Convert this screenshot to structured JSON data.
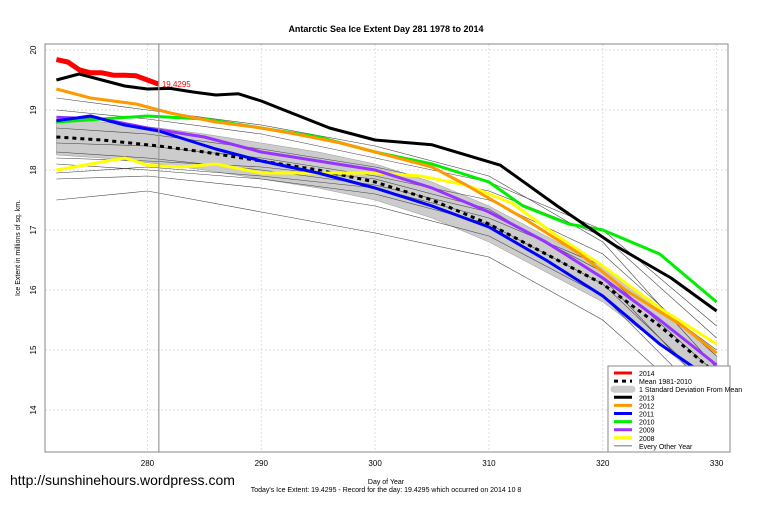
{
  "chart_data": {
    "type": "line",
    "title": "Antarctic Sea Ice Extent Day 281 1978 to 2014",
    "xlabel": "Day of Year",
    "ylabel": "Ice Extent in millions of sq. km.",
    "subtitle": "Today's Ice Extent: 19.4295  - Record for the day: 19.4295 which occurred on 2014 10 8",
    "xlim": [
      271,
      331
    ],
    "ylim": [
      13.3,
      20.1
    ],
    "xticks": [
      280,
      290,
      300,
      310,
      320,
      330
    ],
    "yticks": [
      14,
      15,
      16,
      17,
      18,
      19,
      20
    ],
    "grid": true,
    "legend_position": "bottom-right",
    "marker_day": 281,
    "current_label": "19.4295",
    "sd_band_halfwidth": 0.3,
    "mean": {
      "name": "Mean 1981-2010",
      "x": [
        272,
        276,
        281,
        285,
        290,
        295,
        300,
        305,
        310,
        315,
        320,
        325,
        330
      ],
      "y": [
        18.55,
        18.5,
        18.4,
        18.3,
        18.15,
        18.0,
        17.8,
        17.5,
        17.1,
        16.6,
        16.1,
        15.4,
        14.6
      ]
    },
    "sd_name": "1 Standard Deviation From Mean",
    "series": [
      {
        "name": "2014",
        "color": "#ff0000",
        "width": 5,
        "x": [
          272,
          273,
          274,
          275,
          276,
          277,
          278,
          279,
          280,
          281
        ],
        "y": [
          19.84,
          19.8,
          19.67,
          19.62,
          19.62,
          19.58,
          19.58,
          19.57,
          19.5,
          19.43
        ]
      },
      {
        "name": "2013",
        "color": "#000000",
        "width": 3,
        "x": [
          272,
          274,
          276,
          278,
          280,
          282,
          284,
          286,
          288,
          290,
          292,
          294,
          296,
          298,
          300,
          305,
          311,
          316,
          321,
          326,
          330
        ],
        "y": [
          19.5,
          19.6,
          19.5,
          19.4,
          19.35,
          19.36,
          19.3,
          19.25,
          19.27,
          19.15,
          19.0,
          18.85,
          18.7,
          18.6,
          18.5,
          18.42,
          18.08,
          17.4,
          16.75,
          16.2,
          15.65
        ]
      },
      {
        "name": "2012",
        "color": "#ff9900",
        "width": 3,
        "x": [
          272,
          275,
          279,
          282,
          286,
          290,
          293,
          297,
          300,
          305,
          308,
          313,
          318,
          322,
          327,
          330
        ],
        "y": [
          19.35,
          19.2,
          19.1,
          18.95,
          18.8,
          18.7,
          18.6,
          18.45,
          18.3,
          18.05,
          17.75,
          17.2,
          16.6,
          16.0,
          15.4,
          14.95
        ]
      },
      {
        "name": "2011",
        "color": "#0000ff",
        "width": 3,
        "x": [
          272,
          275,
          278,
          281,
          286,
          290,
          295,
          300,
          305,
          310,
          315,
          320,
          325,
          330
        ],
        "y": [
          18.82,
          18.9,
          18.75,
          18.65,
          18.35,
          18.15,
          17.95,
          17.7,
          17.4,
          17.05,
          16.5,
          15.9,
          15.1,
          14.45
        ]
      },
      {
        "name": "2010",
        "color": "#00ee00",
        "width": 3,
        "x": [
          272,
          276,
          280,
          285,
          290,
          295,
          300,
          305,
          310,
          313,
          317,
          320,
          325,
          330
        ],
        "y": [
          18.8,
          18.85,
          18.9,
          18.85,
          18.7,
          18.55,
          18.3,
          18.1,
          17.8,
          17.4,
          17.1,
          17.0,
          16.6,
          15.8
        ]
      },
      {
        "name": "2009",
        "color": "#9933ff",
        "width": 3,
        "x": [
          272,
          276,
          280,
          285,
          290,
          295,
          300,
          305,
          310,
          315,
          320,
          325,
          330
        ],
        "y": [
          18.88,
          18.85,
          18.7,
          18.55,
          18.3,
          18.15,
          18.0,
          17.7,
          17.3,
          16.8,
          16.2,
          15.5,
          14.75
        ]
      },
      {
        "name": "2008",
        "color": "#ffff00",
        "width": 3,
        "x": [
          272,
          275,
          278,
          280,
          283,
          286,
          290,
          295,
          300,
          304,
          308,
          312,
          316,
          320,
          325,
          330
        ],
        "y": [
          18.0,
          18.1,
          18.2,
          18.08,
          18.05,
          18.1,
          17.95,
          17.95,
          17.95,
          17.9,
          17.75,
          17.45,
          16.9,
          16.4,
          15.7,
          15.1
        ]
      }
    ],
    "other_years": {
      "name": "Every Other Year",
      "color": "#444444",
      "x": [
        272,
        280,
        290,
        300,
        310,
        320,
        330
      ],
      "lines": [
        [
          17.5,
          17.65,
          17.3,
          16.95,
          16.55,
          15.5,
          13.8
        ],
        [
          17.85,
          17.9,
          17.7,
          17.4,
          16.9,
          15.9,
          14.0
        ],
        [
          18.1,
          18.0,
          17.85,
          17.6,
          17.1,
          16.1,
          14.3
        ],
        [
          18.3,
          18.2,
          18.0,
          17.75,
          17.3,
          16.3,
          14.6
        ],
        [
          18.45,
          18.4,
          18.2,
          17.9,
          17.5,
          16.6,
          14.9
        ],
        [
          18.7,
          18.6,
          18.35,
          18.05,
          17.65,
          16.9,
          15.2
        ],
        [
          19.0,
          18.85,
          18.6,
          18.2,
          17.8,
          17.0,
          15.4
        ],
        [
          19.2,
          19.0,
          18.75,
          18.4,
          17.9,
          16.8,
          14.7
        ],
        [
          18.2,
          18.15,
          18.05,
          17.85,
          17.35,
          16.2,
          14.2
        ],
        [
          17.95,
          18.05,
          17.9,
          17.7,
          17.2,
          16.4,
          15.0
        ]
      ]
    }
  },
  "footer": {
    "url": "http://sunshinehours.wordpress.com"
  }
}
